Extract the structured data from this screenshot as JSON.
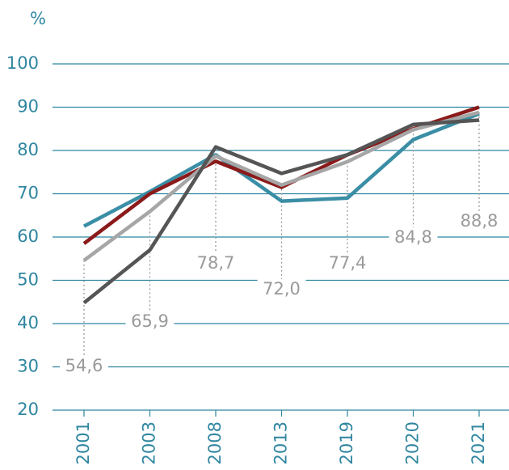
{
  "chart_data": {
    "type": "line",
    "y_label": "%",
    "categories": [
      "2001",
      "2003",
      "2008",
      "2013",
      "2019",
      "2020",
      "2021"
    ],
    "series": [
      {
        "color": "#3a8ea5",
        "values": [
          62.5,
          70.5,
          79,
          68.3,
          69,
          82.5,
          88.5
        ]
      },
      {
        "color": "#8b1a1a",
        "values": [
          58.5,
          70,
          77.5,
          71.5,
          79,
          85,
          90
        ]
      },
      {
        "color": "#a6a6a6",
        "values": [
          54.6,
          65.9,
          78.7,
          72.0,
          77.4,
          84.8,
          88.8
        ],
        "value_labels": [
          "54,6",
          "65,9",
          "78,7",
          "72,0",
          "77,4",
          "84,8",
          "88,8"
        ]
      },
      {
        "color": "#555555",
        "values": [
          44.8,
          57,
          80.8,
          74.7,
          79,
          86,
          87
        ]
      }
    ],
    "ylim": [
      20,
      100
    ],
    "yticks": [
      20,
      30,
      40,
      50,
      60,
      70,
      80,
      90,
      100
    ],
    "grid": true,
    "axis_color": "#2f86a0",
    "label_color": "#9a9a9a"
  }
}
